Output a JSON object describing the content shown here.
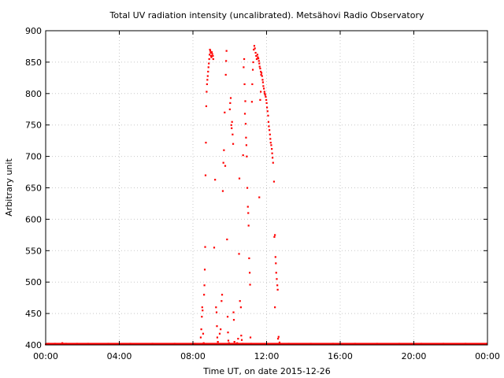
{
  "chart_data": {
    "type": "scatter",
    "title": "Total UV radiation intensity (uncalibrated). Metsähovi Radio Observatory",
    "xlabel": "Time UT, on date 2015-12-26",
    "ylabel": "Arbitrary unit",
    "x_unit": "hours UT",
    "xlim": [
      0,
      24
    ],
    "ylim": [
      400,
      900
    ],
    "x_ticks": [
      0,
      4,
      8,
      12,
      16,
      20,
      24
    ],
    "x_tick_labels": [
      "00:00",
      "04:00",
      "08:00",
      "12:00",
      "16:00",
      "20:00",
      "00:00"
    ],
    "y_ticks": [
      400,
      450,
      500,
      550,
      600,
      650,
      700,
      750,
      800,
      850,
      900
    ],
    "y_tick_labels": [
      "400",
      "450",
      "500",
      "550",
      "600",
      "650",
      "700",
      "750",
      "800",
      "850",
      "900"
    ],
    "grid": true,
    "series": [
      {
        "color": "#ff0000",
        "points": [
          [
            0.0,
            401
          ],
          [
            0.15,
            402
          ],
          [
            0.3,
            401
          ],
          [
            0.5,
            402
          ],
          [
            0.7,
            401
          ],
          [
            0.9,
            403
          ],
          [
            1.1,
            402
          ],
          [
            1.4,
            401
          ],
          [
            1.7,
            402
          ],
          [
            2.0,
            401
          ],
          [
            2.3,
            402
          ],
          [
            2.6,
            401
          ],
          [
            3.0,
            401
          ],
          [
            3.4,
            402
          ],
          [
            3.8,
            401
          ],
          [
            4.2,
            401
          ],
          [
            4.6,
            402
          ],
          [
            5.0,
            401
          ],
          [
            5.4,
            401
          ],
          [
            5.8,
            402
          ],
          [
            6.2,
            401
          ],
          [
            6.6,
            401
          ],
          [
            7.0,
            402
          ],
          [
            7.4,
            401
          ],
          [
            7.8,
            401
          ],
          [
            8.1,
            402
          ],
          [
            8.3,
            401
          ],
          [
            8.42,
            412
          ],
          [
            8.45,
            425
          ],
          [
            8.48,
            445
          ],
          [
            8.5,
            460
          ],
          [
            8.52,
            455
          ],
          [
            8.55,
            418
          ],
          [
            8.58,
            403
          ],
          [
            8.6,
            480
          ],
          [
            8.62,
            495
          ],
          [
            8.64,
            520
          ],
          [
            8.66,
            556
          ],
          [
            8.68,
            670
          ],
          [
            8.7,
            722
          ],
          [
            8.72,
            780
          ],
          [
            8.74,
            803
          ],
          [
            8.76,
            815
          ],
          [
            8.78,
            822
          ],
          [
            8.8,
            828
          ],
          [
            8.82,
            835
          ],
          [
            8.84,
            842
          ],
          [
            8.86,
            848
          ],
          [
            8.88,
            855
          ],
          [
            8.9,
            862
          ],
          [
            8.92,
            870
          ],
          [
            8.94,
            868
          ],
          [
            8.96,
            865
          ],
          [
            8.98,
            860
          ],
          [
            9.0,
            858
          ],
          [
            9.02,
            866
          ],
          [
            9.05,
            863
          ],
          [
            9.08,
            860
          ],
          [
            9.1,
            855
          ],
          [
            9.15,
            555
          ],
          [
            9.2,
            663
          ],
          [
            9.25,
            460
          ],
          [
            9.28,
            452
          ],
          [
            9.3,
            430
          ],
          [
            9.32,
            412
          ],
          [
            9.35,
            405
          ],
          [
            9.38,
            402
          ],
          [
            9.45,
            418
          ],
          [
            9.5,
            425
          ],
          [
            9.55,
            470
          ],
          [
            9.58,
            480
          ],
          [
            9.62,
            645
          ],
          [
            9.65,
            690
          ],
          [
            9.68,
            710
          ],
          [
            9.72,
            770
          ],
          [
            9.75,
            685
          ],
          [
            9.78,
            830
          ],
          [
            9.8,
            852
          ],
          [
            9.82,
            868
          ],
          [
            9.85,
            568
          ],
          [
            9.88,
            445
          ],
          [
            9.9,
            420
          ],
          [
            9.92,
            407
          ],
          [
            9.95,
            403
          ],
          [
            10.0,
            775
          ],
          [
            10.02,
            785
          ],
          [
            10.05,
            793
          ],
          [
            10.08,
            750
          ],
          [
            10.1,
            745
          ],
          [
            10.12,
            755
          ],
          [
            10.15,
            735
          ],
          [
            10.18,
            720
          ],
          [
            10.2,
            452
          ],
          [
            10.22,
            440
          ],
          [
            10.25,
            405
          ],
          [
            10.3,
            402
          ],
          [
            10.35,
            401
          ],
          [
            10.4,
            403
          ],
          [
            10.45,
            410
          ],
          [
            10.5,
            545
          ],
          [
            10.52,
            665
          ],
          [
            10.55,
            470
          ],
          [
            10.6,
            460
          ],
          [
            10.62,
            415
          ],
          [
            10.65,
            408
          ],
          [
            10.7,
            402
          ],
          [
            10.72,
            702
          ],
          [
            10.75,
            842
          ],
          [
            10.78,
            855
          ],
          [
            10.8,
            815
          ],
          [
            10.82,
            768
          ],
          [
            10.84,
            788
          ],
          [
            10.86,
            752
          ],
          [
            10.88,
            730
          ],
          [
            10.9,
            718
          ],
          [
            10.92,
            700
          ],
          [
            10.95,
            650
          ],
          [
            10.98,
            620
          ],
          [
            11.0,
            610
          ],
          [
            11.02,
            590
          ],
          [
            11.05,
            538
          ],
          [
            11.08,
            515
          ],
          [
            11.1,
            496
          ],
          [
            11.12,
            412
          ],
          [
            11.15,
            402
          ],
          [
            11.2,
            787
          ],
          [
            11.22,
            815
          ],
          [
            11.25,
            838
          ],
          [
            11.27,
            850
          ],
          [
            11.3,
            870
          ],
          [
            11.33,
            876
          ],
          [
            11.36,
            872
          ],
          [
            11.4,
            865
          ],
          [
            11.43,
            860
          ],
          [
            11.46,
            855
          ],
          [
            11.5,
            862
          ],
          [
            11.52,
            858
          ],
          [
            11.55,
            856
          ],
          [
            11.58,
            852
          ],
          [
            11.6,
            848
          ],
          [
            11.62,
            843
          ],
          [
            11.65,
            840
          ],
          [
            11.68,
            835
          ],
          [
            11.7,
            830
          ],
          [
            11.72,
            833
          ],
          [
            11.75,
            828
          ],
          [
            11.78,
            822
          ],
          [
            11.8,
            818
          ],
          [
            11.82,
            812
          ],
          [
            11.85,
            808
          ],
          [
            11.88,
            803
          ],
          [
            11.9,
            800
          ],
          [
            11.92,
            798
          ],
          [
            11.95,
            795
          ],
          [
            11.98,
            790
          ],
          [
            12.0,
            785
          ],
          [
            12.02,
            778
          ],
          [
            12.05,
            772
          ],
          [
            12.08,
            765
          ],
          [
            12.1,
            755
          ],
          [
            12.12,
            748
          ],
          [
            12.15,
            742
          ],
          [
            12.18,
            735
          ],
          [
            12.2,
            728
          ],
          [
            12.22,
            722
          ],
          [
            12.25,
            718
          ],
          [
            12.28,
            712
          ],
          [
            12.3,
            705
          ],
          [
            12.32,
            698
          ],
          [
            12.35,
            690
          ],
          [
            11.6,
            635
          ],
          [
            11.68,
            803
          ],
          [
            11.65,
            790
          ],
          [
            12.4,
            660
          ],
          [
            12.42,
            572
          ],
          [
            12.45,
            575
          ],
          [
            12.48,
            540
          ],
          [
            12.5,
            530
          ],
          [
            12.52,
            515
          ],
          [
            12.55,
            505
          ],
          [
            12.58,
            495
          ],
          [
            12.6,
            488
          ],
          [
            12.45,
            460
          ],
          [
            12.62,
            410
          ],
          [
            12.65,
            413
          ],
          [
            12.7,
            404
          ],
          [
            12.75,
            401
          ],
          [
            12.9,
            401
          ],
          [
            13.2,
            402
          ],
          [
            13.6,
            401
          ],
          [
            14.0,
            401
          ],
          [
            14.4,
            402
          ],
          [
            14.8,
            401
          ],
          [
            15.2,
            401
          ],
          [
            15.6,
            402
          ],
          [
            16.0,
            401
          ],
          [
            16.4,
            401
          ],
          [
            16.8,
            402
          ],
          [
            17.2,
            401
          ],
          [
            17.6,
            401
          ],
          [
            18.0,
            402
          ],
          [
            18.4,
            401
          ],
          [
            18.8,
            401
          ],
          [
            19.2,
            402
          ],
          [
            19.6,
            401
          ],
          [
            20.0,
            401
          ],
          [
            20.4,
            402
          ],
          [
            20.8,
            401
          ],
          [
            21.2,
            401
          ],
          [
            21.6,
            402
          ],
          [
            22.0,
            401
          ],
          [
            22.4,
            401
          ],
          [
            22.8,
            402
          ],
          [
            23.2,
            401
          ],
          [
            23.6,
            401
          ],
          [
            23.95,
            402
          ]
        ]
      }
    ]
  }
}
